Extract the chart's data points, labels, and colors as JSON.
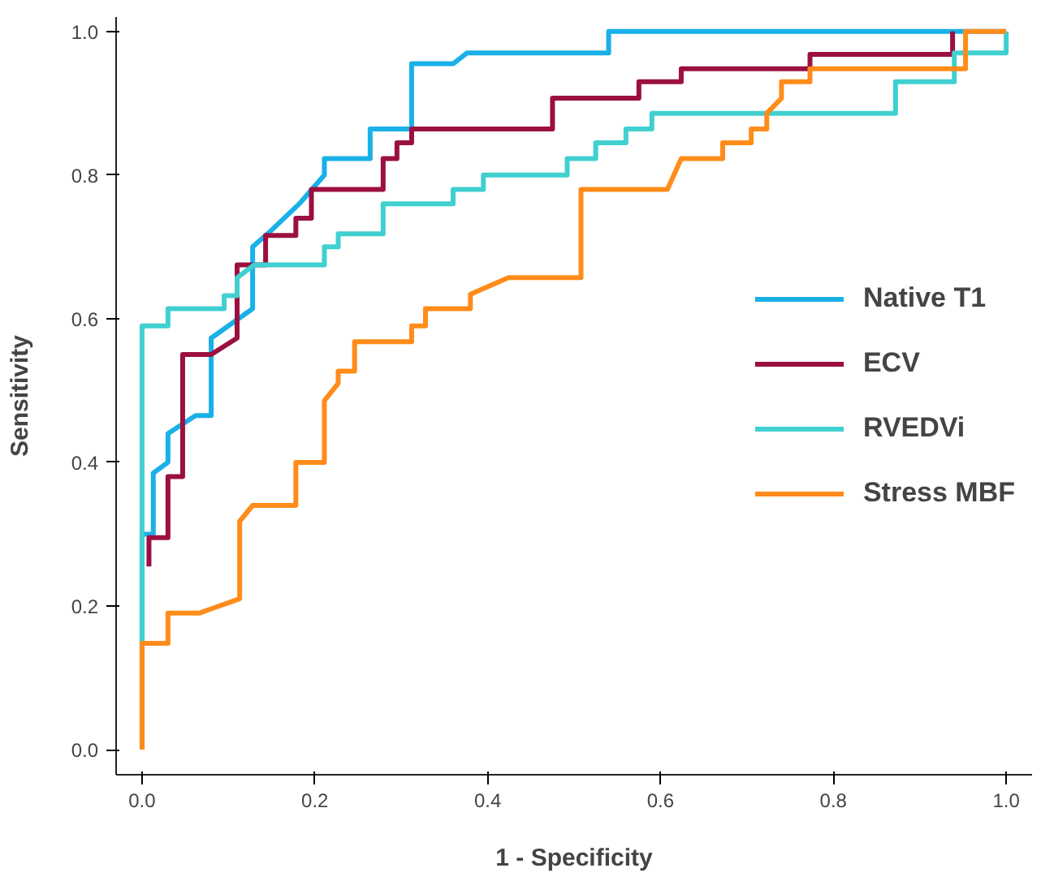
{
  "chart_data": {
    "type": "line",
    "xlabel": "1 - Specificity",
    "ylabel": "Sensitivity",
    "xlim": [
      -0.03,
      1.03
    ],
    "ylim": [
      -0.035,
      1.02
    ],
    "xticks": [
      {
        "value": 0,
        "label": "0.0"
      },
      {
        "value": 0.2,
        "label": "0.2"
      },
      {
        "value": 0.4,
        "label": "0.4"
      },
      {
        "value": 0.6,
        "label": "0.6"
      },
      {
        "value": 0.8,
        "label": "0.8"
      },
      {
        "value": 1,
        "label": "1.0"
      }
    ],
    "yticks": [
      {
        "value": 0,
        "label": "0.0"
      },
      {
        "value": 0.2,
        "label": "0.2"
      },
      {
        "value": 0.4,
        "label": "0.4"
      },
      {
        "value": 0.6,
        "label": "0.6"
      },
      {
        "value": 0.8,
        "label": "0.8"
      },
      {
        "value": 1,
        "label": "1.0"
      }
    ],
    "grid": false,
    "legend": "right",
    "marker": "none",
    "line_style": "solid",
    "series": [
      {
        "name": "Native T1",
        "color": "#1ab0e8",
        "x": [
          0,
          0,
          0.013,
          0.013,
          0.03,
          0.03,
          0.062,
          0.08,
          0.08,
          0.128,
          0.128,
          0.147,
          0.182,
          0.211,
          0.211,
          0.227,
          0.264,
          0.264,
          0.312,
          0.312,
          0.36,
          0.376,
          0.54,
          0.54,
          1
        ],
        "values": [
          0,
          0.3,
          0.3,
          0.385,
          0.4,
          0.44,
          0.465,
          0.465,
          0.573,
          0.614,
          0.7,
          0.72,
          0.76,
          0.8,
          0.823,
          0.823,
          0.823,
          0.864,
          0.864,
          0.955,
          0.955,
          0.97,
          0.97,
          1,
          1
        ]
      },
      {
        "name": "ECV",
        "color": "#9b1040",
        "x": [
          0.008,
          0.008,
          0.03,
          0.03,
          0.047,
          0.047,
          0.08,
          0.11,
          0.11,
          0.143,
          0.143,
          0.178,
          0.178,
          0.196,
          0.196,
          0.279,
          0.279,
          0.295,
          0.295,
          0.312,
          0.312,
          0.475,
          0.475,
          0.575,
          0.575,
          0.624,
          0.624,
          0.773,
          0.773,
          0.938,
          0.938
        ],
        "values": [
          0.255,
          0.295,
          0.295,
          0.38,
          0.38,
          0.55,
          0.55,
          0.573,
          0.675,
          0.675,
          0.716,
          0.716,
          0.74,
          0.74,
          0.78,
          0.78,
          0.823,
          0.823,
          0.845,
          0.845,
          0.864,
          0.864,
          0.907,
          0.907,
          0.93,
          0.93,
          0.948,
          0.948,
          0.968,
          0.968,
          1
        ]
      },
      {
        "name": "RVEDVi",
        "color": "#40d0d0",
        "x": [
          0,
          0,
          0.03,
          0.03,
          0.095,
          0.095,
          0.11,
          0.11,
          0.13,
          0.211,
          0.211,
          0.227,
          0.227,
          0.279,
          0.279,
          0.36,
          0.36,
          0.395,
          0.395,
          0.492,
          0.492,
          0.525,
          0.525,
          0.56,
          0.56,
          0.59,
          0.59,
          0.872,
          0.872,
          0.94,
          0.94,
          1,
          1
        ],
        "values": [
          0.15,
          0.59,
          0.59,
          0.614,
          0.614,
          0.632,
          0.632,
          0.657,
          0.675,
          0.675,
          0.7,
          0.7,
          0.718,
          0.718,
          0.76,
          0.76,
          0.78,
          0.78,
          0.8,
          0.8,
          0.823,
          0.823,
          0.845,
          0.845,
          0.864,
          0.864,
          0.886,
          0.886,
          0.93,
          0.93,
          0.97,
          0.97,
          1
        ]
      },
      {
        "name": "Stress MBF",
        "color": "#ff8c1a",
        "x": [
          0,
          0,
          0.03,
          0.03,
          0.066,
          0.113,
          0.113,
          0.128,
          0.178,
          0.178,
          0.211,
          0.211,
          0.227,
          0.227,
          0.246,
          0.246,
          0.312,
          0.312,
          0.328,
          0.328,
          0.38,
          0.38,
          0.424,
          0.508,
          0.508,
          0.608,
          0.624,
          0.672,
          0.672,
          0.705,
          0.705,
          0.723,
          0.723,
          0.74,
          0.74,
          0.773,
          0.773,
          0.953,
          0.953,
          1
        ],
        "values": [
          0,
          0.148,
          0.148,
          0.19,
          0.19,
          0.21,
          0.318,
          0.34,
          0.34,
          0.4,
          0.4,
          0.486,
          0.51,
          0.527,
          0.527,
          0.568,
          0.568,
          0.59,
          0.59,
          0.614,
          0.614,
          0.634,
          0.657,
          0.657,
          0.78,
          0.78,
          0.823,
          0.823,
          0.845,
          0.845,
          0.864,
          0.864,
          0.886,
          0.907,
          0.93,
          0.93,
          0.948,
          0.948,
          1,
          1
        ]
      }
    ]
  }
}
